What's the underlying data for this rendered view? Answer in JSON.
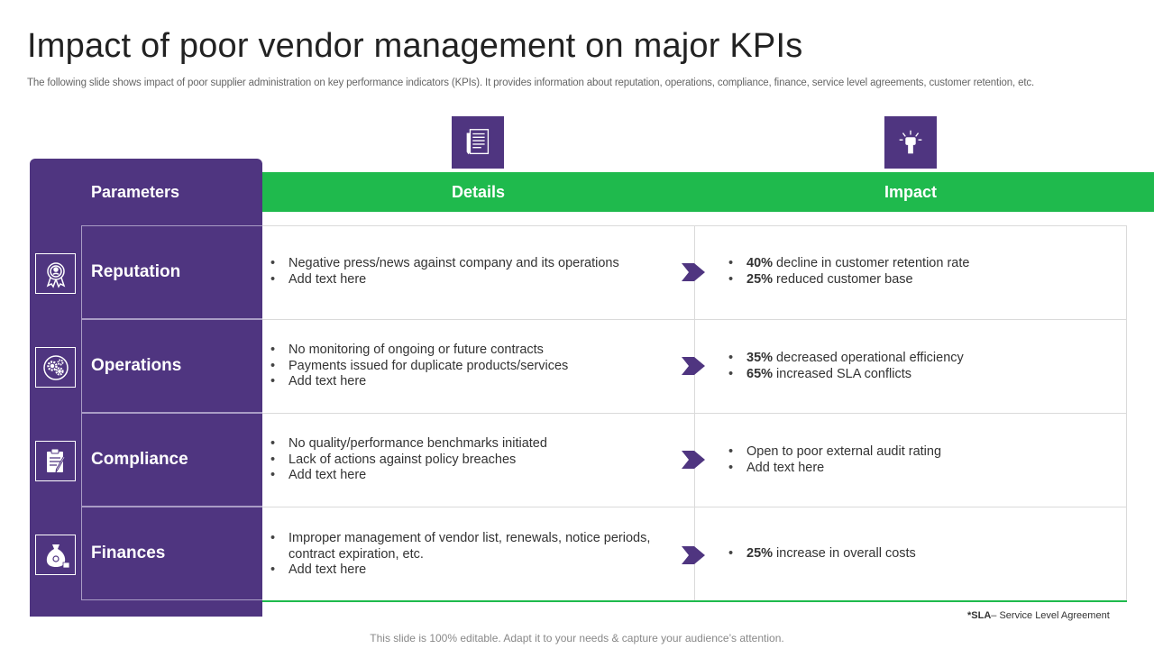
{
  "title": "Impact of poor vendor management on major KPIs",
  "subtitle": "The following slide shows impact of poor supplier administration on key performance indicators (KPIs). It provides information about reputation, operations, compliance, finance, service level agreements, customer retention, etc.",
  "headers": {
    "parameters": "Parameters",
    "details": "Details",
    "impact": "Impact"
  },
  "top_icons": [
    "document-icon",
    "fist-icon"
  ],
  "rows": [
    {
      "parameter": "Reputation",
      "icon": "award-ribbon-icon",
      "details": [
        "Negative press/news against company and its operations",
        "Add text here"
      ],
      "impact": [
        {
          "bold": "40%",
          "text": " decline in customer retention rate"
        },
        {
          "bold": "25%",
          "text": " reduced customer base"
        }
      ]
    },
    {
      "parameter": "Operations",
      "icon": "gears-icon",
      "details": [
        "No monitoring of ongoing or future contracts",
        "Payments issued for duplicate products/services",
        "Add text here"
      ],
      "impact": [
        {
          "bold": "35%",
          "text": " decreased operational efficiency"
        },
        {
          "bold": "65%",
          "text": " increased SLA conflicts"
        }
      ]
    },
    {
      "parameter": "Compliance",
      "icon": "clipboard-pen-icon",
      "details": [
        "No quality/performance benchmarks initiated",
        "Lack of actions against policy breaches",
        "Add text here"
      ],
      "impact": [
        {
          "bold": "",
          "text": "Open to poor external audit rating"
        },
        {
          "bold": "",
          "text": "Add text here"
        }
      ]
    },
    {
      "parameter": "Finances",
      "icon": "money-bag-icon",
      "details": [
        "Improper management of vendor list, renewals, notice periods, contract expiration, etc.",
        "Add text here"
      ],
      "impact": [
        {
          "bold": "25%",
          "text": " increase in overall costs"
        }
      ]
    }
  ],
  "footnote": {
    "bold": "*SLA",
    "text": "– Service Level Agreement"
  },
  "bottom_note": "This slide is 100% editable. Adapt it to your needs & capture your audience’s attention.",
  "colors": {
    "purple": "#4f3580",
    "green": "#1fba4d"
  }
}
